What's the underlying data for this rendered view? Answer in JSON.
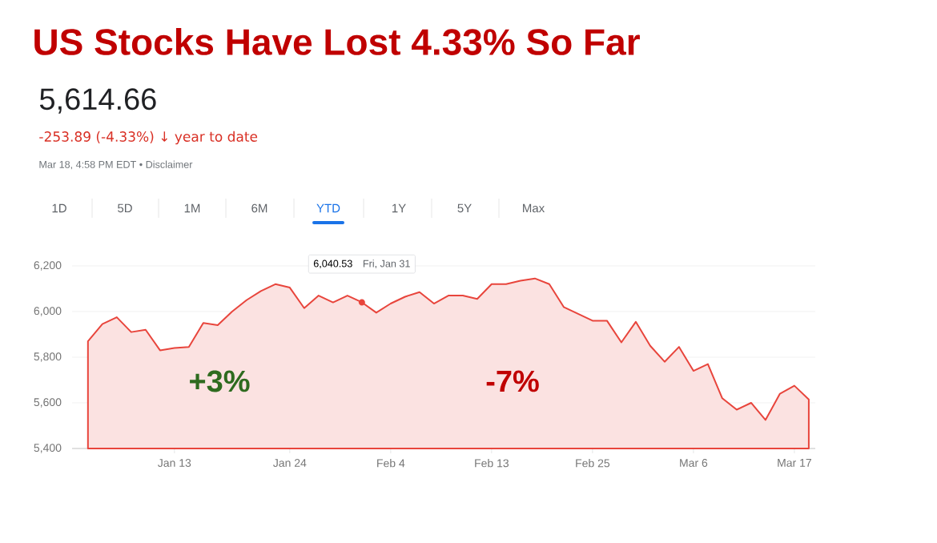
{
  "chart_data": {
    "type": "area",
    "title": "US Stocks Have Lost 4.33% So Far",
    "subtitle": "5,614.66",
    "annotations": [
      "-253.89 (-4.33%) ↓ year to date",
      "Mar 18, 4:58 PM EDT • Disclaimer",
      "1D",
      "5D",
      "1M",
      "6M",
      "YTD",
      "1Y",
      "5Y",
      "Max",
      "+3%",
      "-7%",
      "Fri, Jan 31"
    ],
    "categories": [
      null,
      null,
      null,
      null,
      null,
      null,
      "Jan 13",
      null,
      null,
      null,
      null,
      null,
      null,
      null,
      "Jan 24",
      null,
      null,
      null,
      null,
      null,
      null,
      "Feb 4",
      null,
      null,
      null,
      null,
      null,
      null,
      "Feb 13",
      null,
      null,
      null,
      null,
      null,
      null,
      "Feb 25",
      null,
      null,
      null,
      null,
      null,
      null,
      "Mar 6",
      null,
      null,
      null,
      null,
      null,
      null,
      "Mar 17",
      null
    ],
    "series": [
      {
        "color": "#e8453c",
        "values": [
          5870,
          5945,
          5975,
          5910,
          5920,
          5830,
          5840,
          5845,
          5950,
          5940,
          6000,
          6050,
          6090,
          6120,
          6105,
          6015,
          6070,
          6040,
          6070,
          6040.53,
          5995,
          6035,
          6065,
          6085,
          6035,
          6070,
          6070,
          6055,
          6120,
          6120,
          6135,
          6145,
          6120,
          6020,
          5990,
          5960,
          5960,
          5865,
          5955,
          5850,
          5780,
          5845,
          5740,
          5770,
          5620,
          5570,
          5600,
          5525,
          5640,
          5675,
          5615
        ],
        "value_labels": [
          null,
          null,
          null,
          null,
          null,
          null,
          null,
          null,
          null,
          null,
          null,
          null,
          null,
          null,
          null,
          null,
          null,
          null,
          null,
          "6,040.53",
          null,
          null,
          null,
          null,
          null,
          null,
          null,
          null,
          null,
          null,
          null,
          null,
          null,
          null,
          null,
          null,
          null,
          null,
          null,
          null,
          null,
          null,
          null,
          null,
          null,
          null,
          null,
          null,
          null,
          null,
          null
        ]
      }
    ],
    "ylim": [
      5400,
      6200
    ],
    "yticks": [
      {
        "value": 5400,
        "label": "5,400"
      },
      {
        "value": 5600,
        "label": "5,600"
      },
      {
        "value": 5800,
        "label": "5,800"
      },
      {
        "value": 6000,
        "label": "6,000"
      },
      {
        "value": 6200,
        "label": "6,200"
      }
    ],
    "grid": "y"
  }
}
